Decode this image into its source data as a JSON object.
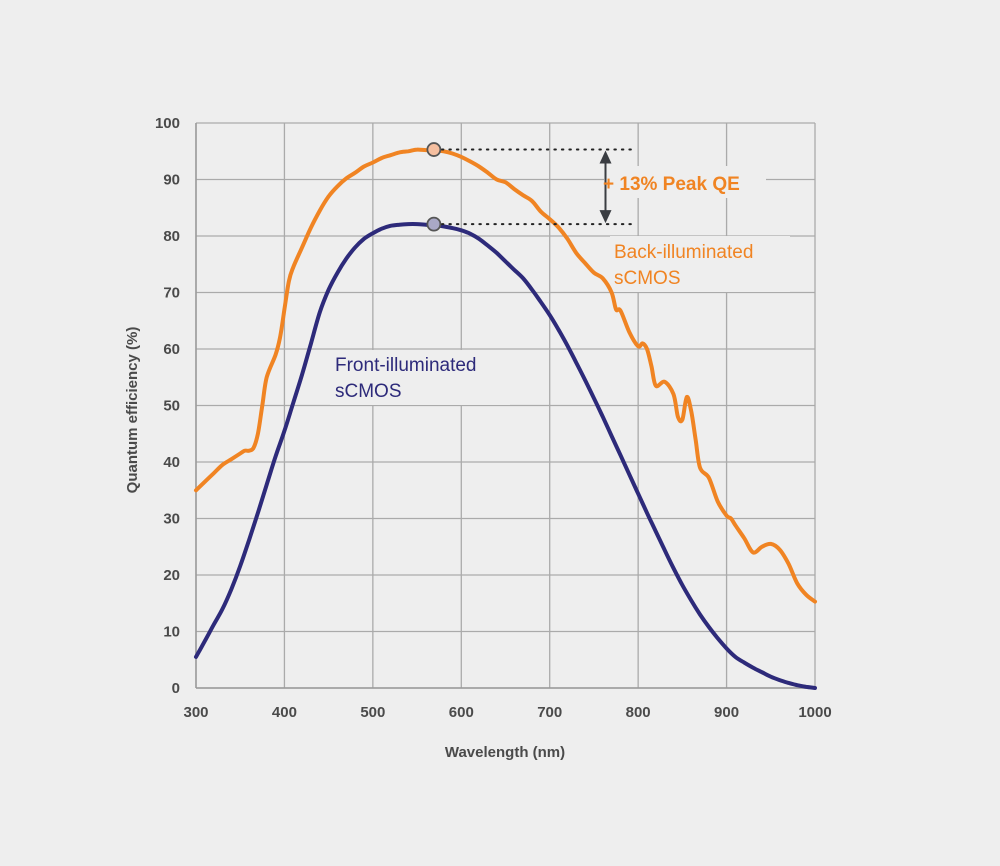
{
  "chart_data": {
    "type": "line",
    "title": "",
    "xlabel": "Wavelength (nm)",
    "ylabel": "Quantum efficiency (%)",
    "xlim": [
      300,
      1000
    ],
    "ylim": [
      0,
      100
    ],
    "x_ticks": [
      300,
      400,
      500,
      600,
      700,
      800,
      900,
      1000
    ],
    "y_ticks": [
      0,
      10,
      20,
      30,
      40,
      50,
      60,
      70,
      80,
      90,
      100
    ],
    "grid": true,
    "series": [
      {
        "name": "Back-illuminated sCMOS",
        "label_lines": [
          "Back-illuminated",
          "sCMOS"
        ],
        "color": "#f08423",
        "x": [
          300,
          310,
          320,
          330,
          340,
          350,
          355,
          360,
          365,
          370,
          375,
          380,
          390,
          395,
          400,
          405,
          410,
          420,
          430,
          440,
          450,
          460,
          470,
          480,
          490,
          500,
          510,
          520,
          530,
          540,
          550,
          560,
          570,
          580,
          590,
          600,
          610,
          620,
          630,
          640,
          650,
          660,
          670,
          680,
          690,
          700,
          710,
          720,
          730,
          740,
          750,
          760,
          770,
          775,
          780,
          790,
          800,
          805,
          810,
          815,
          820,
          830,
          840,
          845,
          850,
          855,
          860,
          865,
          870,
          880,
          890,
          900,
          905,
          910,
          920,
          930,
          940,
          950,
          960,
          970,
          980,
          990,
          1000
        ],
        "y": [
          35,
          36.5,
          38,
          39.5,
          40.5,
          41.5,
          42,
          42,
          42.5,
          45,
          50,
          55,
          59,
          62,
          67,
          72,
          74.5,
          78,
          81.5,
          84.5,
          87,
          88.8,
          90.2,
          91.2,
          92.3,
          93,
          93.8,
          94.3,
          94.8,
          95,
          95.3,
          95.2,
          95.2,
          95,
          94.6,
          94,
          93.2,
          92.3,
          91.2,
          90,
          89.5,
          88.3,
          87.2,
          86.2,
          84.3,
          83,
          81.5,
          79.5,
          77,
          75.2,
          73.5,
          72.5,
          70,
          67,
          66.8,
          63,
          60.5,
          61,
          60,
          57,
          53.5,
          54.2,
          52,
          48,
          47.5,
          51.5,
          49,
          44,
          39,
          37.2,
          33,
          30.5,
          30,
          28.8,
          26.5,
          24,
          25,
          25.5,
          24.5,
          22,
          18.5,
          16.5,
          15.3
        ]
      },
      {
        "name": "Front-illuminated sCMOS",
        "label_lines": [
          "Front-illuminated",
          "sCMOS"
        ],
        "color": "#2d2a7a",
        "x": [
          300,
          310,
          320,
          330,
          340,
          350,
          360,
          370,
          380,
          390,
          400,
          410,
          420,
          430,
          440,
          450,
          460,
          470,
          480,
          490,
          500,
          510,
          520,
          530,
          540,
          550,
          560,
          570,
          580,
          590,
          600,
          610,
          620,
          630,
          640,
          650,
          660,
          670,
          680,
          690,
          700,
          710,
          720,
          730,
          740,
          750,
          760,
          770,
          780,
          790,
          800,
          810,
          820,
          830,
          840,
          850,
          860,
          870,
          880,
          890,
          900,
          910,
          920,
          930,
          940,
          950,
          960,
          970,
          980,
          990,
          1000
        ],
        "y": [
          5.5,
          8.3,
          11.2,
          14,
          17.5,
          21.6,
          26.2,
          31,
          36,
          41,
          45.5,
          50.5,
          55.5,
          61,
          66.5,
          70.5,
          73.5,
          76,
          78,
          79.5,
          80.5,
          81.3,
          81.8,
          82,
          82.1,
          82.1,
          82,
          81.9,
          81.7,
          81.4,
          81,
          80.4,
          79.5,
          78.3,
          77,
          75.5,
          74,
          72.5,
          70.5,
          68.3,
          66,
          63.4,
          60.6,
          57.6,
          54.5,
          51.3,
          48,
          44.6,
          41.2,
          37.8,
          34.4,
          31,
          27.7,
          24.4,
          21.2,
          18.2,
          15.5,
          13,
          10.8,
          8.8,
          7,
          5.5,
          4.5,
          3.6,
          2.8,
          2,
          1.4,
          0.9,
          0.5,
          0.2,
          0
        ]
      }
    ],
    "annotations": {
      "peak_gain_label": "+ 13% Peak QE",
      "peak_wavelength": 569,
      "back_peak_value": 95.3,
      "front_peak_value": 82.1,
      "arrow_x_nm": 745,
      "guide_end_nm": 770
    }
  }
}
